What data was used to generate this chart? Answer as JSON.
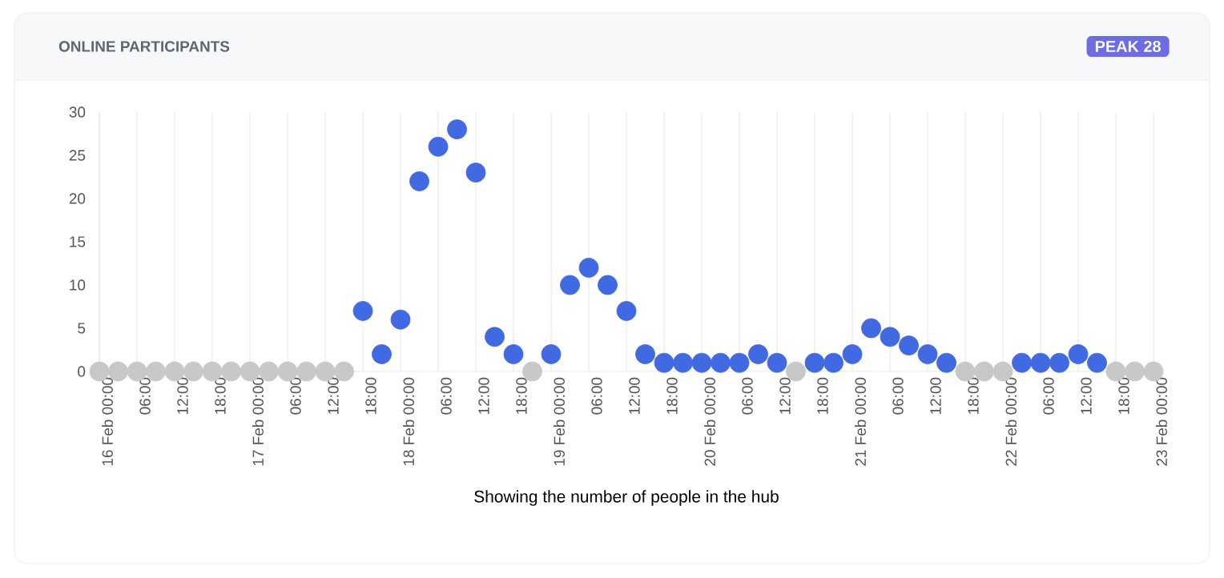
{
  "chart_data": {
    "type": "scatter",
    "title": "ONLINE PARTICIPANTS",
    "annotations": [
      "PEAK 28"
    ],
    "xlabel": "Showing the number of people in the hub",
    "categories": [
      "16 Feb 00:00",
      null,
      "06:00",
      null,
      "12:00",
      null,
      "18:00",
      null,
      "17 Feb 00:00",
      null,
      "06:00",
      null,
      "12:00",
      null,
      "18:00",
      null,
      "18 Feb 00:00",
      null,
      "06:00",
      null,
      "12:00",
      null,
      "18:00",
      null,
      "19 Feb 00:00",
      null,
      "06:00",
      null,
      "12:00",
      null,
      "18:00",
      null,
      "20 Feb 00:00",
      null,
      "06:00",
      null,
      "12:00",
      null,
      "18:00",
      null,
      "21 Feb 00:00",
      null,
      "06:00",
      null,
      "12:00",
      null,
      "18:00",
      null,
      "22 Feb 00:00",
      null,
      "06:00",
      null,
      "12:00",
      null,
      "18:00",
      null,
      "23 Feb 00:00"
    ],
    "values": [
      0,
      0,
      0,
      0,
      0,
      0,
      0,
      0,
      0,
      0,
      0,
      0,
      0,
      0,
      7,
      2,
      6,
      22,
      26,
      28,
      23,
      4,
      2,
      0,
      2,
      10,
      12,
      10,
      7,
      2,
      1,
      1,
      1,
      1,
      1,
      2,
      1,
      0,
      1,
      1,
      2,
      5,
      4,
      3,
      2,
      1,
      0,
      0,
      0,
      1,
      1,
      1,
      2,
      1,
      0,
      0,
      0
    ],
    "colors": [
      "#c8c8c8",
      "#c8c8c8",
      "#c8c8c8",
      "#c8c8c8",
      "#c8c8c8",
      "#c8c8c8",
      "#c8c8c8",
      "#c8c8c8",
      "#c8c8c8",
      "#c8c8c8",
      "#c8c8c8",
      "#c8c8c8",
      "#c8c8c8",
      "#c8c8c8",
      "#4169e1",
      "#4169e1",
      "#4169e1",
      "#4169e1",
      "#4169e1",
      "#4169e1",
      "#4169e1",
      "#4169e1",
      "#4169e1",
      "#c8c8c8",
      "#4169e1",
      "#4169e1",
      "#4169e1",
      "#4169e1",
      "#4169e1",
      "#4169e1",
      "#4169e1",
      "#4169e1",
      "#4169e1",
      "#4169e1",
      "#4169e1",
      "#4169e1",
      "#4169e1",
      "#c8c8c8",
      "#4169e1",
      "#4169e1",
      "#4169e1",
      "#4169e1",
      "#4169e1",
      "#4169e1",
      "#4169e1",
      "#4169e1",
      "#c8c8c8",
      "#c8c8c8",
      "#c8c8c8",
      "#4169e1",
      "#4169e1",
      "#4169e1",
      "#4169e1",
      "#4169e1",
      "#c8c8c8",
      "#c8c8c8",
      "#c8c8c8"
    ],
    "ylim": [
      0,
      30
    ],
    "yticks": [
      0,
      5,
      10,
      15,
      20,
      25,
      30
    ],
    "grid": "x",
    "marker": "circle"
  }
}
